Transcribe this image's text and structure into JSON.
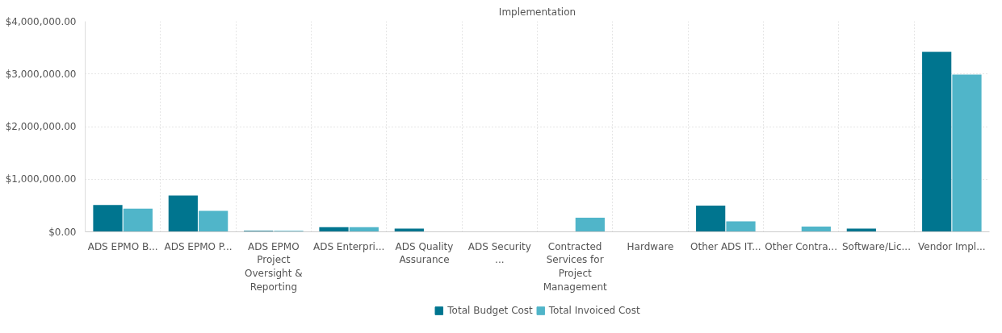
{
  "chart_data": {
    "type": "bar",
    "title": "Implementation",
    "categories": [
      "ADS EPMO B...",
      "ADS EPMO P...",
      "ADS EPMO Project Oversight & Reporting",
      "ADS Enterpri...",
      "ADS Quality Assurance",
      "ADS Security ...",
      "Contracted Services for Project Management",
      "Hardware",
      "Other ADS IT...",
      "Other Contra...",
      "Software/Lic...",
      "Vendor Impl..."
    ],
    "series": [
      {
        "name": "Total Budget Cost",
        "color": "#00758f",
        "values": [
          510000,
          690000,
          20000,
          90000,
          60000,
          0,
          0,
          0,
          500000,
          0,
          60000,
          3420000
        ]
      },
      {
        "name": "Total Invoiced Cost",
        "color": "#50b5c9",
        "values": [
          440000,
          400000,
          20000,
          90000,
          0,
          0,
          270000,
          0,
          200000,
          100000,
          0,
          2990000
        ]
      }
    ],
    "ylim": [
      0,
      4000000
    ],
    "yticks": [
      {
        "value": 0,
        "label": "$0.00"
      },
      {
        "value": 1000000,
        "label": "$1,000,000.00"
      },
      {
        "value": 2000000,
        "label": "$2,000,000.00"
      },
      {
        "value": 3000000,
        "label": "$3,000,000.00"
      },
      {
        "value": 4000000,
        "label": "$4,000,000.00"
      }
    ],
    "grid": true,
    "legend": "bottom"
  }
}
